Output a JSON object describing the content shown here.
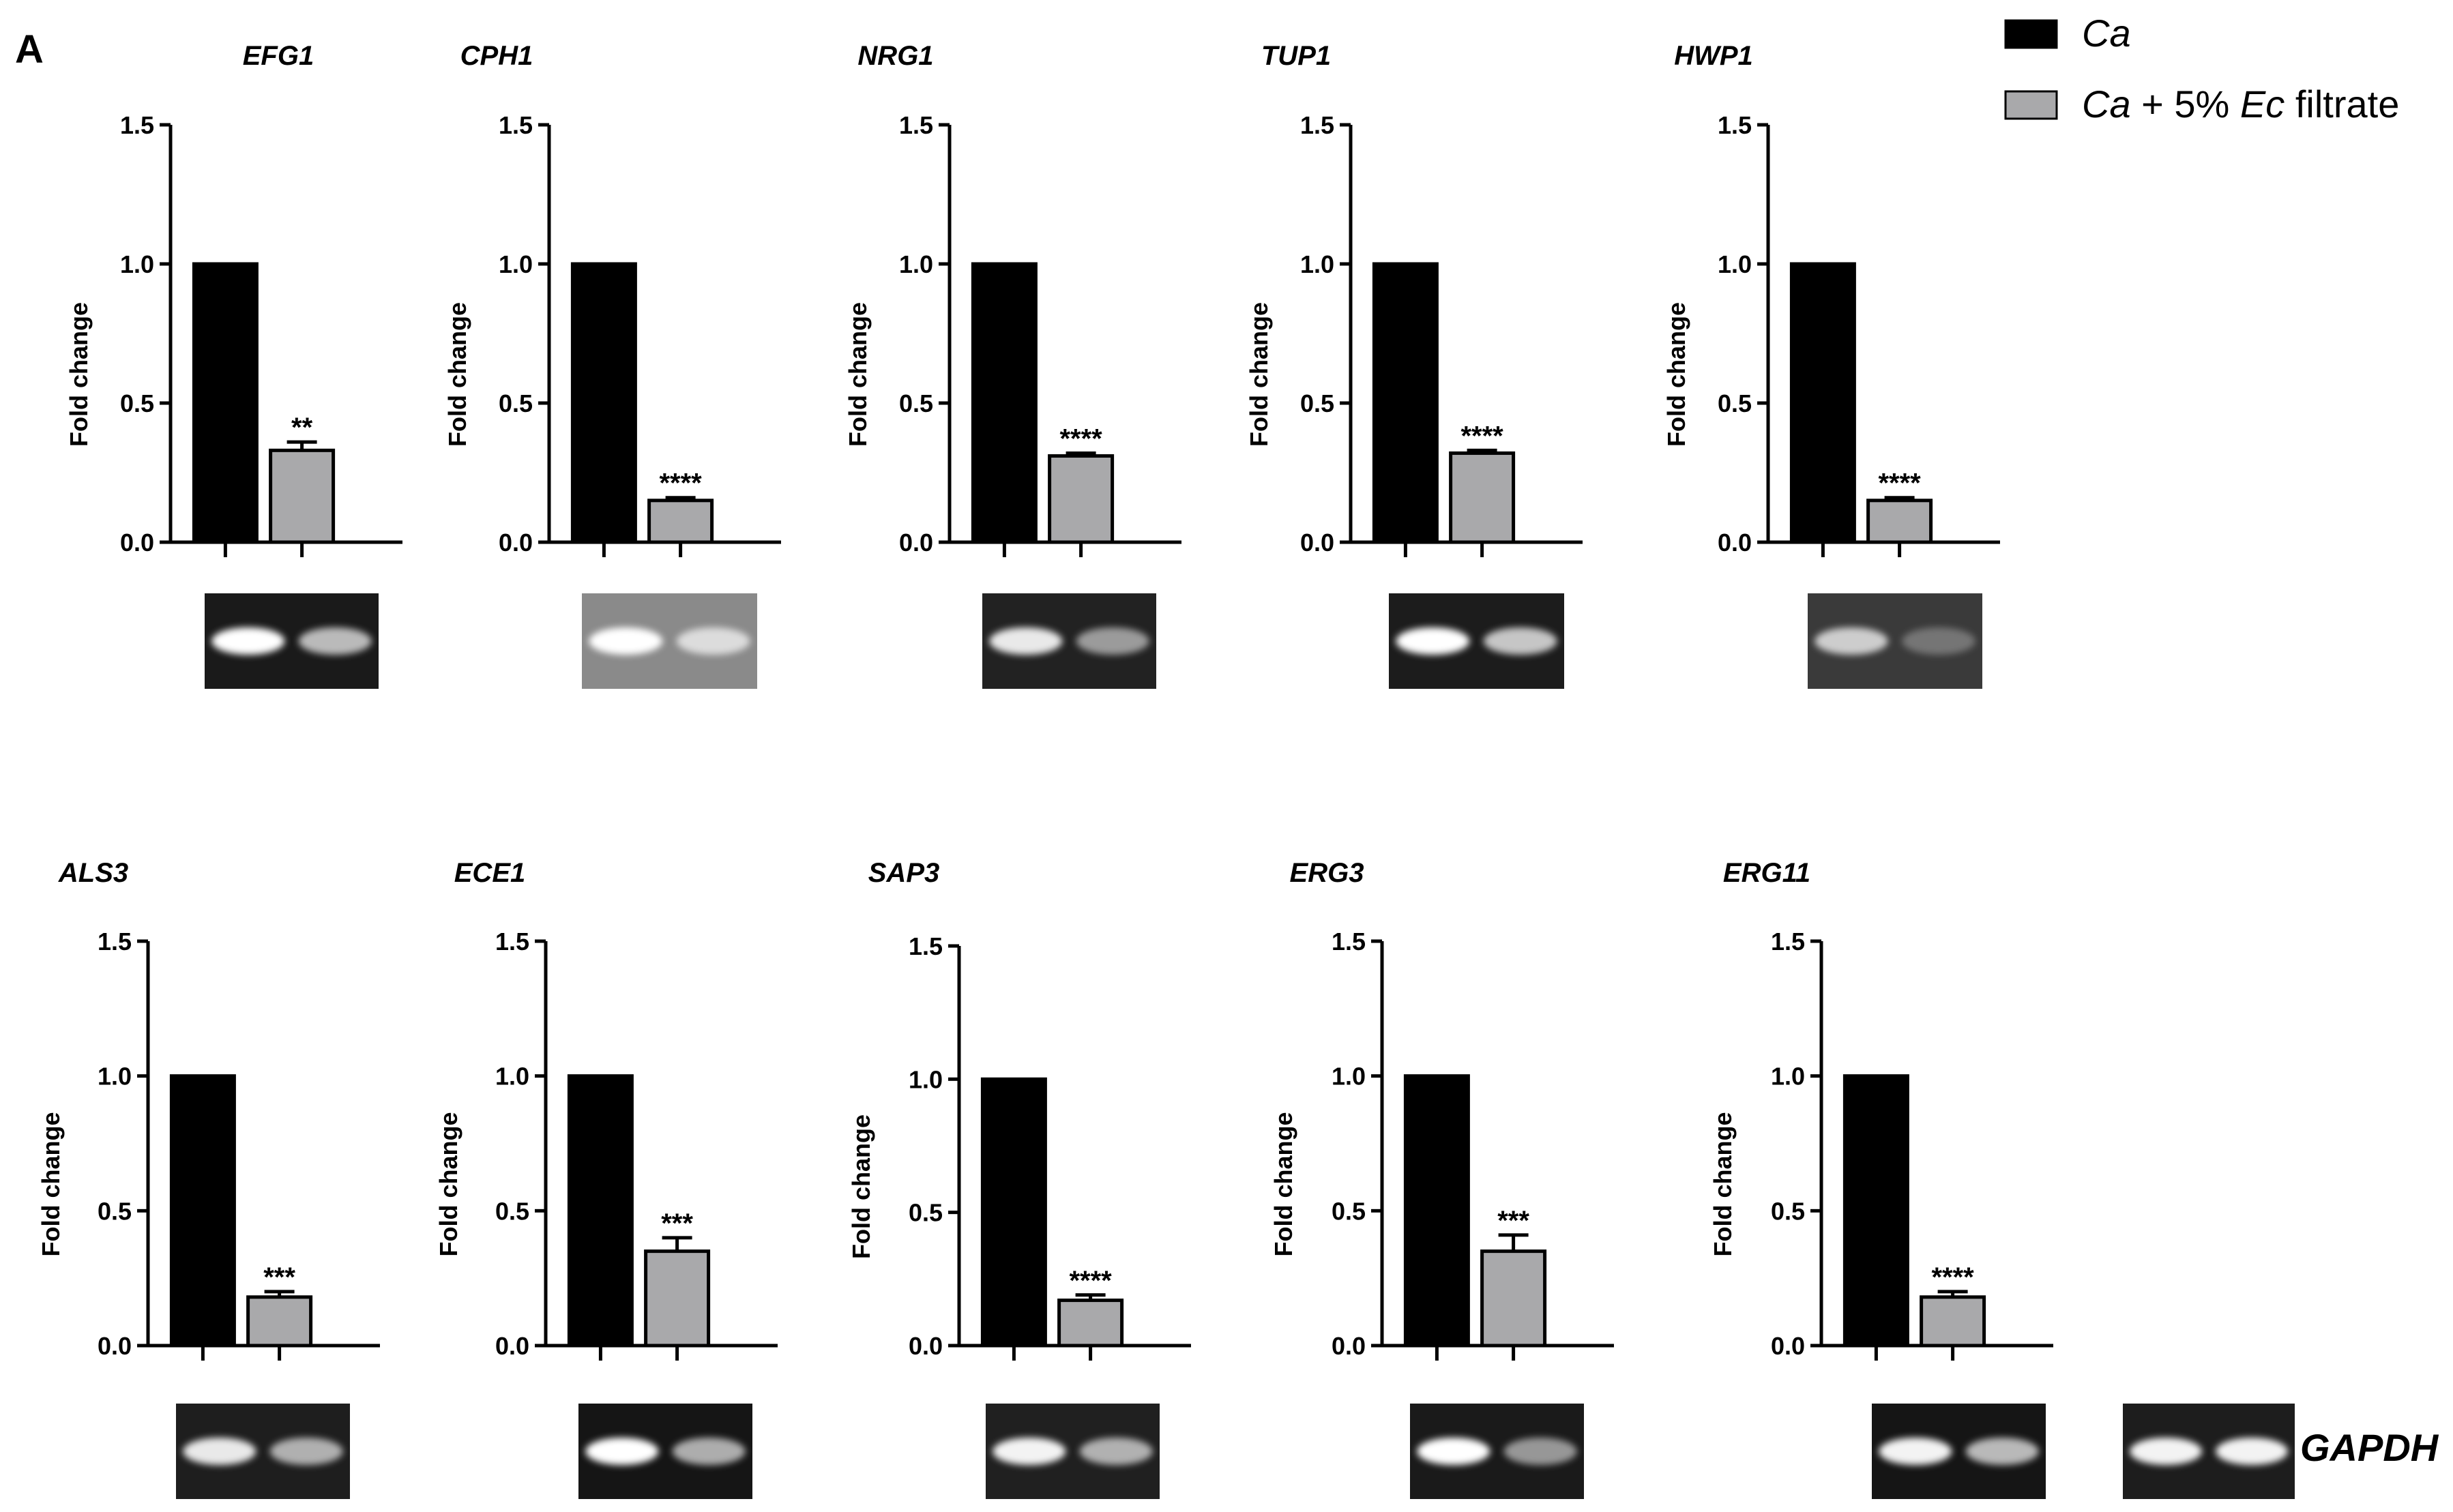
{
  "figure": {
    "panel_label": "A",
    "legend": [
      {
        "label": "Ca",
        "color": "#000000"
      },
      {
        "label_parts": [
          {
            "text": "Ca",
            "italic": true
          },
          {
            "text": " + 5% ",
            "italic": false
          },
          {
            "text": "Ec",
            "italic": true
          },
          {
            "text": " filtrate",
            "italic": false
          }
        ],
        "color": "#a9a9ab"
      }
    ],
    "gapdh_label": "GAPDH",
    "gapdh_gel": {
      "bg": "#1d1d1d",
      "bands": [
        0.95,
        0.95
      ]
    }
  },
  "chart_data": [
    {
      "type": "bar",
      "title": "EFG1",
      "categories": [
        "Ca",
        "Ca + 5% Ec filtrate"
      ],
      "values": [
        1.0,
        0.33
      ],
      "errors": [
        0,
        0.03
      ],
      "significance": "**",
      "ylabel": "Fold change",
      "ylim": [
        0,
        1.5
      ],
      "yticks": [
        "0.0",
        "0.5",
        "1.0",
        "1.5"
      ],
      "gel": {
        "bg": "#1a1a1a",
        "bands": [
          1.0,
          0.7
        ]
      }
    },
    {
      "type": "bar",
      "title": "CPH1",
      "categories": [
        "Ca",
        "Ca + 5% Ec filtrate"
      ],
      "values": [
        1.0,
        0.15
      ],
      "errors": [
        0,
        0.01
      ],
      "significance": "****",
      "ylabel": "Fold change",
      "ylim": [
        0,
        1.5
      ],
      "yticks": [
        "0.0",
        "0.5",
        "1.0",
        "1.5"
      ],
      "gel": {
        "bg": "#8a8a8a",
        "bands": [
          1.0,
          0.7
        ]
      }
    },
    {
      "type": "bar",
      "title": "NRG1",
      "categories": [
        "Ca",
        "Ca + 5% Ec filtrate"
      ],
      "values": [
        1.0,
        0.31
      ],
      "errors": [
        0,
        0.01
      ],
      "significance": "****",
      "ylabel": "Fold change",
      "ylim": [
        0,
        1.5
      ],
      "yticks": [
        "0.0",
        "0.5",
        "1.0",
        "1.5"
      ],
      "gel": {
        "bg": "#222222",
        "bands": [
          0.9,
          0.55
        ]
      }
    },
    {
      "type": "bar",
      "title": "TUP1",
      "categories": [
        "Ca",
        "Ca + 5% Ec filtrate"
      ],
      "values": [
        1.0,
        0.32
      ],
      "errors": [
        0,
        0.01
      ],
      "significance": "****",
      "ylabel": "Fold change",
      "ylim": [
        0,
        1.5
      ],
      "yticks": [
        "0.0",
        "0.5",
        "1.0",
        "1.5"
      ],
      "gel": {
        "bg": "#1c1c1c",
        "bands": [
          1.0,
          0.75
        ]
      }
    },
    {
      "type": "bar",
      "title": "HWP1",
      "categories": [
        "Ca",
        "Ca + 5% Ec filtrate"
      ],
      "values": [
        1.0,
        0.15
      ],
      "errors": [
        0,
        0.01
      ],
      "significance": "****",
      "ylabel": "Fold change",
      "ylim": [
        0,
        1.5
      ],
      "yticks": [
        "0.0",
        "0.5",
        "1.0",
        "1.5"
      ],
      "gel": {
        "bg": "#3a3a3a",
        "bands": [
          0.75,
          0.3
        ]
      }
    },
    {
      "type": "bar",
      "title": "ALS3",
      "categories": [
        "Ca",
        "Ca + 5% Ec filtrate"
      ],
      "values": [
        1.0,
        0.18
      ],
      "errors": [
        0,
        0.02
      ],
      "significance": "***",
      "ylabel": "Fold change",
      "ylim": [
        0,
        1.5
      ],
      "yticks": [
        "0.0",
        "0.5",
        "1.0",
        "1.5"
      ],
      "gel": {
        "bg": "#1e1e1e",
        "bands": [
          0.9,
          0.65
        ]
      }
    },
    {
      "type": "bar",
      "title": "ECE1",
      "categories": [
        "Ca",
        "Ca + 5% Ec filtrate"
      ],
      "values": [
        1.0,
        0.35
      ],
      "errors": [
        0,
        0.05
      ],
      "significance": "***",
      "ylabel": "Fold change",
      "ylim": [
        0,
        1.5
      ],
      "yticks": [
        "0.0",
        "0.5",
        "1.0",
        "1.5"
      ],
      "gel": {
        "bg": "#151515",
        "bands": [
          1.0,
          0.65
        ]
      }
    },
    {
      "type": "bar",
      "title": "SAP3",
      "categories": [
        "Ca",
        "Ca + 5% Ec filtrate"
      ],
      "values": [
        1.0,
        0.17
      ],
      "errors": [
        0,
        0.02
      ],
      "significance": "****",
      "ylabel": "Fold change",
      "ylim": [
        0,
        1.5
      ],
      "yticks": [
        "0.0",
        "0.5",
        "1.0",
        "1.5"
      ],
      "gel": {
        "bg": "#202020",
        "bands": [
          0.95,
          0.65
        ]
      }
    },
    {
      "type": "bar",
      "title": "ERG3",
      "categories": [
        "Ca",
        "Ca + 5% Ec filtrate"
      ],
      "values": [
        1.0,
        0.35
      ],
      "errors": [
        0,
        0.06
      ],
      "significance": "***",
      "ylabel": "Fold change",
      "ylim": [
        0,
        1.5
      ],
      "yticks": [
        "0.0",
        "0.5",
        "1.0",
        "1.5"
      ],
      "gel": {
        "bg": "#1a1a1a",
        "bands": [
          1.0,
          0.55
        ]
      }
    },
    {
      "type": "bar",
      "title": "ERG11",
      "categories": [
        "Ca",
        "Ca + 5% Ec filtrate"
      ],
      "values": [
        1.0,
        0.18
      ],
      "errors": [
        0,
        0.02
      ],
      "significance": "****",
      "ylabel": "Fold change",
      "ylim": [
        0,
        1.5
      ],
      "yticks": [
        "0.0",
        "0.5",
        "1.0",
        "1.5"
      ],
      "gel": {
        "bg": "#151515",
        "bands": [
          0.95,
          0.7
        ]
      }
    }
  ]
}
